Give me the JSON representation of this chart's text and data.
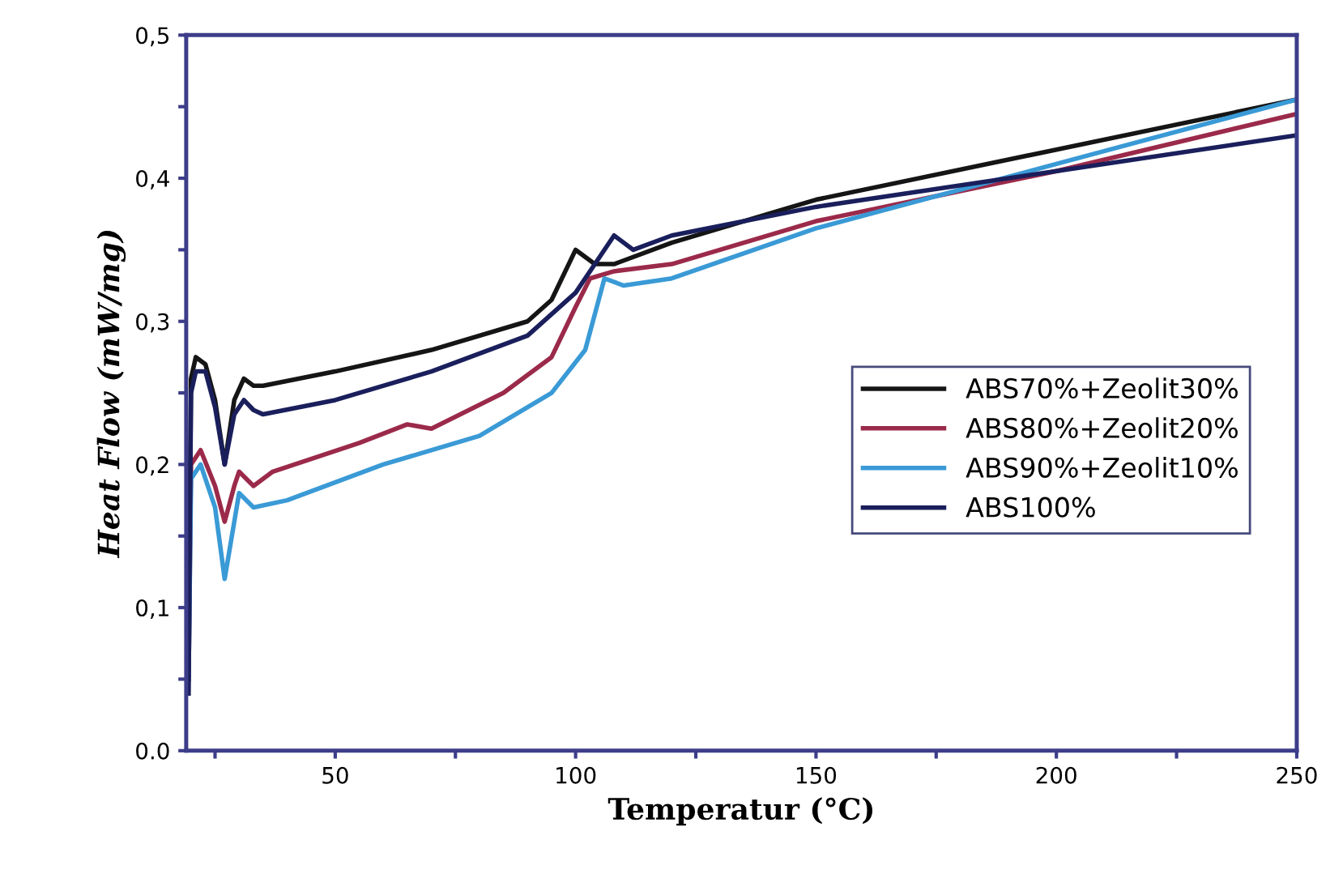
{
  "chart_data": {
    "type": "line",
    "xlabel": "Temperatur (°C)",
    "ylabel": "Heat Flow (mW/mg)",
    "xlim": [
      19,
      250
    ],
    "ylim": [
      0,
      0.5
    ],
    "xticks": [
      {
        "value": 25,
        "label": null
      },
      50,
      {
        "value": 75,
        "label": null
      },
      100,
      {
        "value": 125,
        "label": null
      },
      150,
      {
        "value": 175,
        "label": null
      },
      200,
      {
        "value": 225,
        "label": null
      },
      250
    ],
    "yticks": [
      {
        "value": 0,
        "label": "0.0"
      },
      {
        "value": 0.05,
        "label": null
      },
      {
        "value": 0.1,
        "label": "0,1"
      },
      {
        "value": 0.15,
        "label": null
      },
      {
        "value": 0.2,
        "label": "0,2"
      },
      {
        "value": 0.25,
        "label": null
      },
      {
        "value": 0.3,
        "label": "0,3"
      },
      {
        "value": 0.35,
        "label": null
      },
      {
        "value": 0.4,
        "label": "0,4"
      },
      {
        "value": 0.45,
        "label": null
      },
      {
        "value": 0.5,
        "label": "0,5"
      }
    ],
    "grid": false,
    "legend": "right",
    "marker": "none",
    "line_style": "solid",
    "series": [
      {
        "name": "ABS70%+Zeolit30%",
        "color": "#151515",
        "x": [
          19.5,
          20,
          21,
          23,
          25,
          27,
          29,
          31,
          33,
          35,
          50,
          70,
          90,
          95,
          100,
          104,
          108,
          120,
          150,
          200,
          250
        ],
        "values": [
          0.06,
          0.26,
          0.275,
          0.27,
          0.245,
          0.2,
          0.245,
          0.26,
          0.255,
          0.255,
          0.265,
          0.28,
          0.3,
          0.315,
          0.35,
          0.34,
          0.34,
          0.355,
          0.385,
          0.42,
          0.455
        ]
      },
      {
        "name": "ABS80%+Zeolit20%",
        "color": "#9b2a4a",
        "x": [
          19.5,
          20,
          22,
          25,
          27,
          29,
          30,
          33,
          37,
          55,
          65,
          70,
          85,
          95,
          100,
          103,
          108,
          120,
          150,
          200,
          250
        ],
        "values": [
          0.05,
          0.2,
          0.21,
          0.185,
          0.16,
          0.185,
          0.195,
          0.185,
          0.195,
          0.215,
          0.228,
          0.225,
          0.25,
          0.275,
          0.31,
          0.33,
          0.335,
          0.34,
          0.37,
          0.405,
          0.445
        ]
      },
      {
        "name": "ABS90%+Zeolit10%",
        "color": "#3a9ad6",
        "x": [
          19.5,
          20,
          22,
          25,
          27,
          29,
          30,
          33,
          40,
          60,
          80,
          95,
          102,
          106,
          110,
          120,
          150,
          200,
          250
        ],
        "values": [
          0.05,
          0.19,
          0.2,
          0.17,
          0.12,
          0.16,
          0.18,
          0.17,
          0.175,
          0.2,
          0.22,
          0.25,
          0.28,
          0.33,
          0.325,
          0.33,
          0.365,
          0.41,
          0.455
        ]
      },
      {
        "name": "ABS100%",
        "color": "#1a1f5c",
        "x": [
          19.5,
          20,
          21,
          23,
          25,
          27,
          29,
          31,
          33,
          35,
          50,
          70,
          90,
          100,
          105,
          108,
          112,
          120,
          150,
          200,
          250
        ],
        "values": [
          0.04,
          0.25,
          0.265,
          0.265,
          0.24,
          0.2,
          0.235,
          0.245,
          0.238,
          0.235,
          0.245,
          0.265,
          0.29,
          0.32,
          0.345,
          0.36,
          0.35,
          0.36,
          0.38,
          0.405,
          0.43
        ]
      }
    ]
  }
}
